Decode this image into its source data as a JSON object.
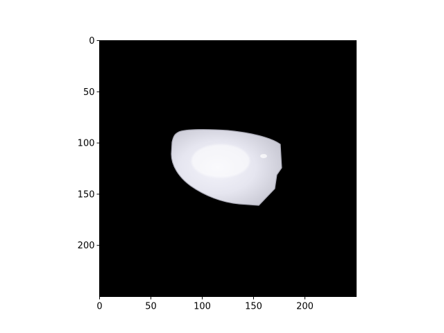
{
  "figure": {
    "image": {
      "description": "grayscale photo of a single pale rice-like grain on black background",
      "background_color": "#000000",
      "object_color": "#e4e4ee",
      "extent_x": [
        0,
        250
      ],
      "extent_y": [
        0,
        250
      ]
    },
    "x_axis": {
      "ticks": [
        0,
        50,
        100,
        150,
        200
      ],
      "tick_labels": [
        "0",
        "50",
        "100",
        "150",
        "200"
      ]
    },
    "y_axis": {
      "ticks": [
        0,
        50,
        100,
        150,
        200
      ],
      "tick_labels": [
        "0",
        "50",
        "100",
        "150",
        "200"
      ],
      "inverted": true
    }
  }
}
